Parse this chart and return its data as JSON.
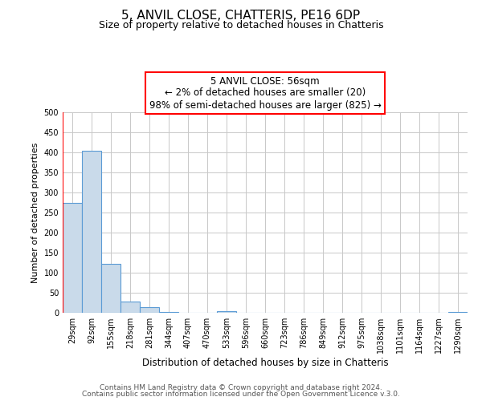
{
  "title": "5, ANVIL CLOSE, CHATTERIS, PE16 6DP",
  "subtitle": "Size of property relative to detached houses in Chatteris",
  "xlabel": "Distribution of detached houses by size in Chatteris",
  "ylabel": "Number of detached properties",
  "bar_color": "#c9daea",
  "bar_edge_color": "#5b9bd5",
  "bin_labels": [
    "29sqm",
    "92sqm",
    "155sqm",
    "218sqm",
    "281sqm",
    "344sqm",
    "407sqm",
    "470sqm",
    "533sqm",
    "596sqm",
    "660sqm",
    "723sqm",
    "786sqm",
    "849sqm",
    "912sqm",
    "975sqm",
    "1038sqm",
    "1101sqm",
    "1164sqm",
    "1227sqm",
    "1290sqm"
  ],
  "bar_values": [
    275,
    405,
    122,
    29,
    15,
    3,
    0,
    0,
    5,
    0,
    0,
    0,
    0,
    0,
    0,
    0,
    0,
    0,
    0,
    0,
    3
  ],
  "ylim": [
    0,
    500
  ],
  "yticks": [
    0,
    50,
    100,
    150,
    200,
    250,
    300,
    350,
    400,
    450,
    500
  ],
  "annotation_title": "5 ANVIL CLOSE: 56sqm",
  "annotation_line1": "← 2% of detached houses are smaller (20)",
  "annotation_line2": "98% of semi-detached houses are larger (825) →",
  "footer_line1": "Contains HM Land Registry data © Crown copyright and database right 2024.",
  "footer_line2": "Contains public sector information licensed under the Open Government Licence v.3.0.",
  "grid_color": "#c8c8c8"
}
